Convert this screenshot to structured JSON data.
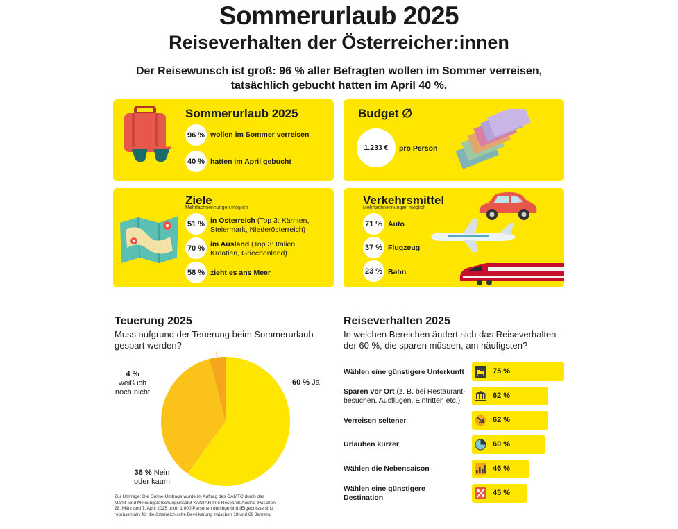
{
  "header": {
    "title": "Sommerurlaub 2025",
    "subtitle": "Reiseverhalten der Österreicher:innen",
    "lead_line1": "Der Reisewunsch ist groß: 96 % aller Befragten wollen im Sommer verreisen,",
    "lead_line2": "tatsächlich gebucht hatten im April 40 %."
  },
  "card_summer": {
    "title": "Sommerurlaub 2025",
    "items": [
      {
        "value": "96 %",
        "text": "wollen im Sommer verreisen"
      },
      {
        "value": "40 %",
        "text": "hatten im April gebucht"
      }
    ]
  },
  "card_budget": {
    "title": "Budget",
    "symbol": "∅",
    "value": "1.233 €",
    "unit": "pro Person"
  },
  "card_goals": {
    "title": "Ziele",
    "note": "Mehrfachnennungen möglich",
    "items": [
      {
        "value": "51 %",
        "bold": "in Österreich",
        "detail1": " (Top 3: Kärnten,",
        "detail2": "Steiermark, Niederösterreich)"
      },
      {
        "value": "70 %",
        "bold": "im Ausland",
        "detail1": " (Top 3: Italien,",
        "detail2": "Kroatien, Griechenland)"
      },
      {
        "value": "58 %",
        "bold": "zieht es ans Meer"
      }
    ]
  },
  "card_transport": {
    "title": "Verkehrsmittel",
    "note": "Mehrfachnennungen möglich",
    "items": [
      {
        "value": "71 %",
        "text": "Auto"
      },
      {
        "value": "37 %",
        "text": "Flugzeug"
      },
      {
        "value": "23 %",
        "text": "Bahn"
      }
    ]
  },
  "inflation": {
    "title": "Teuerung 2025",
    "question_line1": "Muss aufgrund der Teuerung beim Sommerurlaub",
    "question_line2": "gespart werden?",
    "labels": {
      "yes_value": "60 %",
      "yes_text": "Ja",
      "no_value": "36 %",
      "no_text1": "Nein",
      "no_text2": "oder kaum",
      "dk_value": "4 %",
      "dk_text1": "weiß ich",
      "dk_text2": "noch nicht"
    }
  },
  "behavior": {
    "title": "Reiseverhalten 2025",
    "question_line1": "In welchen Bereichen ändert sich das Reiseverhalten",
    "question_line2": "der 60 %, die sparen müssen, am häufigsten?",
    "rows": [
      {
        "label": "Wählen eine günstigere Unterkunft",
        "value": "75 %"
      },
      {
        "label": "Sparen vor Ort",
        "detail1": " (z. B. bei Restaurant-",
        "detail2": "besuchen, Ausflügen, Eintritten etc.)",
        "value": "62 %"
      },
      {
        "label": "Verreisen seltener",
        "value": "62 %"
      },
      {
        "label": "Urlauben kürzer",
        "value": "60 %"
      },
      {
        "label": "Wählen die Nebensaison",
        "value": "46 %"
      },
      {
        "label1": "Wählen eine günstigere",
        "label2": "Destination",
        "value": "45 %"
      }
    ]
  },
  "footnote": {
    "line1": "Zur Umfrage: Die Online-Umfrage wurde im Auftrag des ÖAMTC durch das",
    "line2": "Markt- und Meinungsforschungsinstitut KANTAR Info Research Austria zwischen",
    "line3": "28. März und 7. April 2025 unter 1.000 Personen durchgeführt (Ergebnisse sind",
    "line4": "repräsentativ für die österreichische Bevölkerung zwischen 18 und 69 Jahren)."
  },
  "chart_data": [
    {
      "type": "pie",
      "title": "Teuerung 2025",
      "categories": [
        "Ja",
        "Nein oder kaum",
        "weiß ich noch nicht"
      ],
      "values": [
        60,
        36,
        4
      ],
      "colors": [
        "#ffe600",
        "#fbc21a",
        "#f4a71d"
      ]
    },
    {
      "type": "bar",
      "title": "Reiseverhalten 2025",
      "categories": [
        "Wählen eine günstigere Unterkunft",
        "Sparen vor Ort",
        "Verreisen seltener",
        "Urlauben kürzer",
        "Wählen die Nebensaison",
        "Wählen eine günstigere Destination"
      ],
      "values": [
        75,
        62,
        62,
        60,
        46,
        45
      ],
      "color": "#ffe600"
    }
  ]
}
